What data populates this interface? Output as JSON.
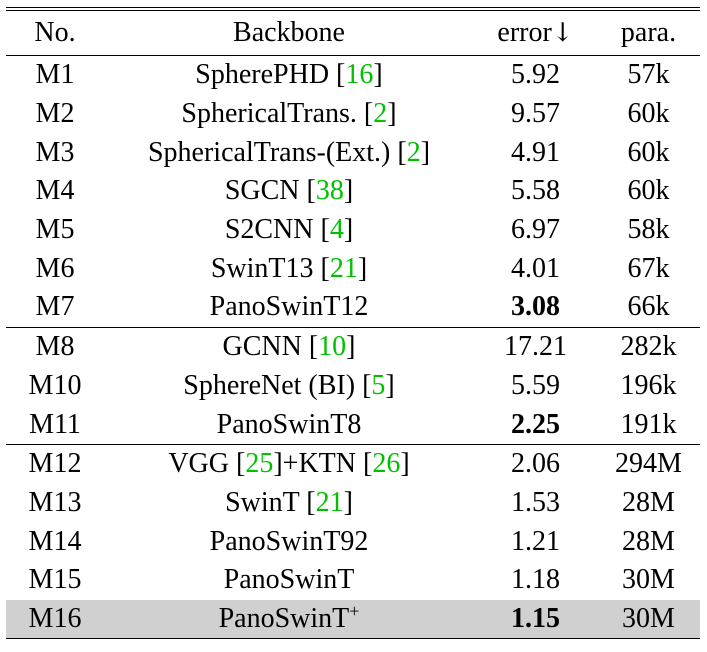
{
  "header": {
    "no": "No.",
    "backbone": "Backbone",
    "error": "error",
    "error_arrow": "↓",
    "para": "para."
  },
  "groups": [
    {
      "rows": [
        {
          "no": "M1",
          "backbone": "SpherePHD ",
          "ref": "16",
          "error": "5.92",
          "para": "57k",
          "bold": false
        },
        {
          "no": "M2",
          "backbone": "SphericalTrans. ",
          "ref": "2",
          "error": "9.57",
          "para": "60k",
          "bold": false
        },
        {
          "no": "M3",
          "backbone": "SphericalTrans-(Ext.) ",
          "ref": "2",
          "error": "4.91",
          "para": "60k",
          "bold": false
        },
        {
          "no": "M4",
          "backbone": "SGCN ",
          "ref": "38",
          "error": "5.58",
          "para": "60k",
          "bold": false
        },
        {
          "no": "M5",
          "backbone": "S2CNN ",
          "ref": "4",
          "error": "6.97",
          "para": "58k",
          "bold": false
        },
        {
          "no": "M6",
          "backbone": "SwinT13 ",
          "ref": "21",
          "error": "4.01",
          "para": "67k",
          "bold": false
        },
        {
          "no": "M7",
          "backbone": "PanoSwinT12",
          "ref": "",
          "error": "3.08",
          "para": "66k",
          "bold": true
        }
      ]
    },
    {
      "rows": [
        {
          "no": "M8",
          "backbone": "GCNN ",
          "ref": "10",
          "error": "17.21",
          "para": "282k",
          "bold": false
        },
        {
          "no": "M10",
          "backbone": "SphereNet (BI) ",
          "ref": "5",
          "error": "5.59",
          "para": "196k",
          "bold": false
        },
        {
          "no": "M11",
          "backbone": "PanoSwinT8",
          "ref": "",
          "error": "2.25",
          "para": "191k",
          "bold": true
        }
      ]
    },
    {
      "rows": [
        {
          "no": "M12",
          "backbone": "VGG ",
          "ref": "25",
          "backbone2": "+KTN ",
          "ref2": "26",
          "error": "2.06",
          "para": "294M",
          "bold": false
        },
        {
          "no": "M13",
          "backbone": "SwinT ",
          "ref": "21",
          "error": "1.53",
          "para": "28M",
          "bold": false
        },
        {
          "no": "M14",
          "backbone": "PanoSwinT92",
          "ref": "",
          "error": "1.21",
          "para": "28M",
          "bold": false
        },
        {
          "no": "M15",
          "backbone": "PanoSwinT",
          "ref": "",
          "error": "1.18",
          "para": "30M",
          "bold": false
        },
        {
          "no": "M16",
          "backbone": "PanoSwinT",
          "sup": "+",
          "ref": "",
          "error": "1.15",
          "para": "30M",
          "bold": true,
          "highlight": true
        }
      ]
    }
  ],
  "colors": {
    "ref_link": "#00c000",
    "highlight_row": "#d0d0d0"
  }
}
